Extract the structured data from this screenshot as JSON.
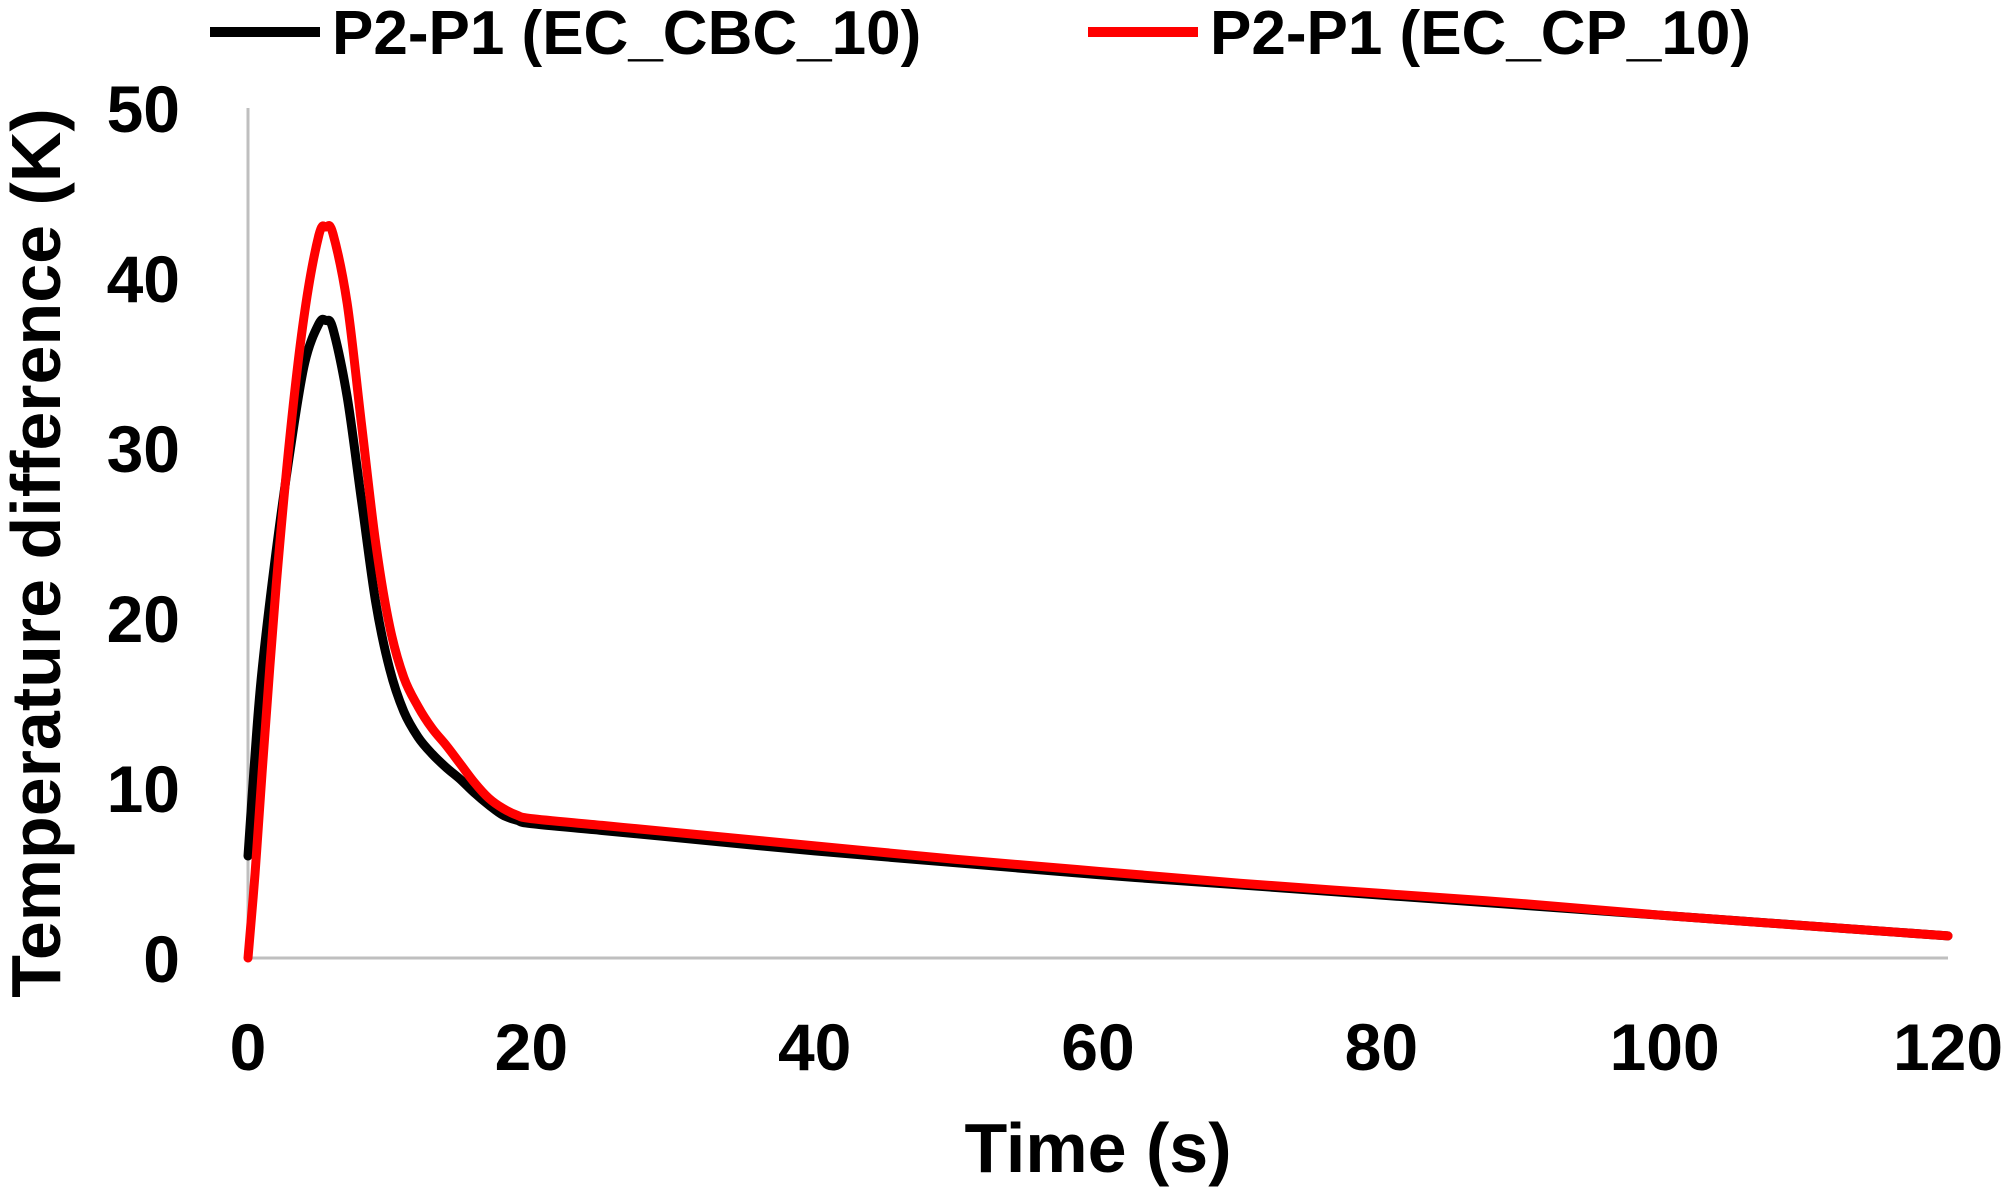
{
  "chart_data": {
    "type": "line",
    "title": "",
    "xlabel": "Time (s)",
    "ylabel": "Temperature difference (K)",
    "xlim": [
      0,
      120
    ],
    "ylim": [
      0,
      50
    ],
    "xticks": [
      0,
      20,
      40,
      60,
      80,
      100,
      120
    ],
    "yticks": [
      0,
      10,
      20,
      30,
      40,
      50
    ],
    "grid": false,
    "legend_position": "top",
    "series": [
      {
        "name": "P2-P1 (EC_CBC_10)",
        "color": "#000000",
        "x": [
          0,
          0.5,
          1,
          2,
          3,
          4,
          5,
          5.5,
          6,
          7,
          8,
          9,
          10,
          11,
          12,
          13,
          14,
          15,
          16,
          17,
          18,
          19,
          20,
          25,
          30,
          40,
          50,
          60,
          70,
          80,
          90,
          100,
          110,
          120
        ],
        "y": [
          6,
          12,
          17,
          24,
          30,
          35,
          37.3,
          37.5,
          37,
          33,
          27,
          21,
          17,
          14.5,
          13,
          12,
          11.2,
          10.5,
          9.7,
          9,
          8.4,
          8.1,
          7.9,
          7.5,
          7.1,
          6.3,
          5.6,
          4.9,
          4.3,
          3.7,
          3.1,
          2.5,
          1.9,
          1.3
        ]
      },
      {
        "name": "P2-P1 (EC_CP_10)",
        "color": "#ff0000",
        "x": [
          0,
          0.5,
          1,
          2,
          3,
          4,
          5,
          5.5,
          6,
          7,
          8,
          9,
          10,
          11,
          12,
          13,
          14,
          15,
          16,
          17,
          18,
          19,
          20,
          25,
          30,
          40,
          50,
          60,
          70,
          80,
          90,
          100,
          110,
          120
        ],
        "y": [
          0,
          5,
          11,
          22,
          31,
          38,
          42.5,
          43,
          42.6,
          38.5,
          31.5,
          24.5,
          19.5,
          16.5,
          14.8,
          13.5,
          12.5,
          11.4,
          10.3,
          9.4,
          8.8,
          8.4,
          8.2,
          7.8,
          7.4,
          6.6,
          5.8,
          5.1,
          4.4,
          3.8,
          3.2,
          2.5,
          1.9,
          1.3
        ]
      }
    ]
  }
}
